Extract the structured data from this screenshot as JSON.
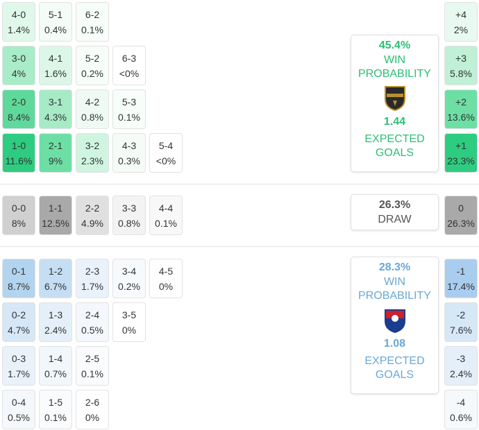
{
  "home": {
    "rows": [
      [
        {
          "score": "4-0",
          "pct": "1.4%",
          "color": "#e0f8ea"
        },
        {
          "score": "5-1",
          "pct": "0.4%",
          "color": "#f3fcf7"
        },
        {
          "score": "6-2",
          "pct": "0.1%",
          "color": "#f7fdf9"
        }
      ],
      [
        {
          "score": "3-0",
          "pct": "4%",
          "color": "#a9ecc8"
        },
        {
          "score": "4-1",
          "pct": "1.6%",
          "color": "#dcf7e8"
        },
        {
          "score": "5-2",
          "pct": "0.2%",
          "color": "#f7fdf9"
        },
        {
          "score": "6-3",
          "pct": "<0%",
          "color": "#ffffff"
        }
      ],
      [
        {
          "score": "2-0",
          "pct": "8.4%",
          "color": "#5fd99b"
        },
        {
          "score": "3-1",
          "pct": "4.3%",
          "color": "#a6ebc6"
        },
        {
          "score": "4-2",
          "pct": "0.8%",
          "color": "#eefbf4"
        },
        {
          "score": "5-3",
          "pct": "0.1%",
          "color": "#f7fdf9"
        }
      ],
      [
        {
          "score": "1-0",
          "pct": "11.6%",
          "color": "#2ecc80"
        },
        {
          "score": "2-1",
          "pct": "9%",
          "color": "#6ddfa5"
        },
        {
          "score": "3-2",
          "pct": "2.3%",
          "color": "#cff5e0"
        },
        {
          "score": "4-3",
          "pct": "0.3%",
          "color": "#f5fcf8"
        },
        {
          "score": "5-4",
          "pct": "<0%",
          "color": "#ffffff"
        }
      ]
    ],
    "margins": [
      {
        "score": "+4",
        "pct": "2%",
        "color": "#e8faf0"
      },
      {
        "score": "+3",
        "pct": "5.8%",
        "color": "#c0f0d6"
      },
      {
        "score": "+2",
        "pct": "13.6%",
        "color": "#6ddfa5"
      },
      {
        "score": "+1",
        "pct": "23.3%",
        "color": "#2ecc80"
      }
    ],
    "win_probability": "45.4%",
    "win_label": "WIN PROBABILITY",
    "expected_goals": "1.44",
    "expected_goals_label": "EXPECTED GOALS"
  },
  "draw": {
    "row": [
      {
        "score": "0-0",
        "pct": "8%",
        "color": "#d0d0d0"
      },
      {
        "score": "1-1",
        "pct": "12.5%",
        "color": "#a9a9a9"
      },
      {
        "score": "2-2",
        "pct": "4.9%",
        "color": "#e0e0e0"
      },
      {
        "score": "3-3",
        "pct": "0.8%",
        "color": "#f3f3f3"
      },
      {
        "score": "4-4",
        "pct": "0.1%",
        "color": "#f8f8f8"
      }
    ],
    "margin": {
      "score": "0",
      "pct": "26.3%",
      "color": "#a9a9a9"
    },
    "probability": "26.3%",
    "label": "DRAW"
  },
  "away": {
    "rows": [
      [
        {
          "score": "0-1",
          "pct": "8.7%",
          "color": "#b3d4ef"
        },
        {
          "score": "1-2",
          "pct": "6.7%",
          "color": "#c6def3"
        },
        {
          "score": "2-3",
          "pct": "1.7%",
          "color": "#e9f2fa"
        },
        {
          "score": "3-4",
          "pct": "0.2%",
          "color": "#f7fafd"
        },
        {
          "score": "4-5",
          "pct": "0%",
          "color": "#ffffff"
        }
      ],
      [
        {
          "score": "0-2",
          "pct": "4.7%",
          "color": "#d6e7f6"
        },
        {
          "score": "1-3",
          "pct": "2.4%",
          "color": "#e5eff9"
        },
        {
          "score": "2-4",
          "pct": "0.5%",
          "color": "#f4f8fc"
        },
        {
          "score": "3-5",
          "pct": "0%",
          "color": "#ffffff"
        }
      ],
      [
        {
          "score": "0-3",
          "pct": "1.7%",
          "color": "#e9f2fa"
        },
        {
          "score": "1-4",
          "pct": "0.7%",
          "color": "#f2f7fc"
        },
        {
          "score": "2-5",
          "pct": "0.1%",
          "color": "#f9fbfd"
        }
      ],
      [
        {
          "score": "0-4",
          "pct": "0.5%",
          "color": "#f4f8fc"
        },
        {
          "score": "1-5",
          "pct": "0.1%",
          "color": "#f9fbfd"
        },
        {
          "score": "2-6",
          "pct": "0%",
          "color": "#ffffff"
        }
      ]
    ],
    "margins": [
      {
        "score": "-1",
        "pct": "17.4%",
        "color": "#a9cdee"
      },
      {
        "score": "-2",
        "pct": "7.6%",
        "color": "#d6e7f6"
      },
      {
        "score": "-3",
        "pct": "2.4%",
        "color": "#e5eff9"
      },
      {
        "score": "-4",
        "pct": "0.6%",
        "color": "#f5f9fc"
      }
    ],
    "win_probability": "28.3%",
    "win_label": "WIN PROBABILITY",
    "expected_goals": "1.08",
    "expected_goals_label": "EXPECTED GOALS"
  }
}
